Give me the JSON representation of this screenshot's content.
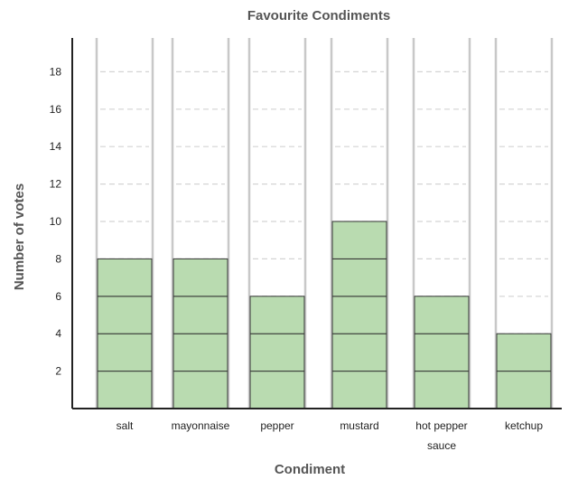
{
  "chart_data": {
    "type": "bar",
    "title": "Favourite Condiments",
    "xlabel": "Condiment",
    "ylabel": "Number of votes",
    "categories": [
      "salt",
      "mayonnaise",
      "pepper",
      "mustard",
      "hot pepper sauce",
      "ketchup"
    ],
    "category_lines": [
      [
        "salt"
      ],
      [
        "mayonnaise"
      ],
      [
        "pepper"
      ],
      [
        "mustard"
      ],
      [
        "hot pepper",
        "sauce"
      ],
      [
        "ketchup"
      ]
    ],
    "values": [
      8,
      8,
      6,
      10,
      6,
      4
    ],
    "yticks": [
      2,
      4,
      6,
      8,
      10,
      12,
      14,
      16,
      18
    ],
    "ylim": [
      0,
      20
    ],
    "grid": true,
    "colors": {
      "bar_fill": "#b9dbb0",
      "bar_stroke": "#333333",
      "column_line": "#c8c8c8",
      "grid_line": "#d4d4d4",
      "axis": "#222222"
    }
  }
}
